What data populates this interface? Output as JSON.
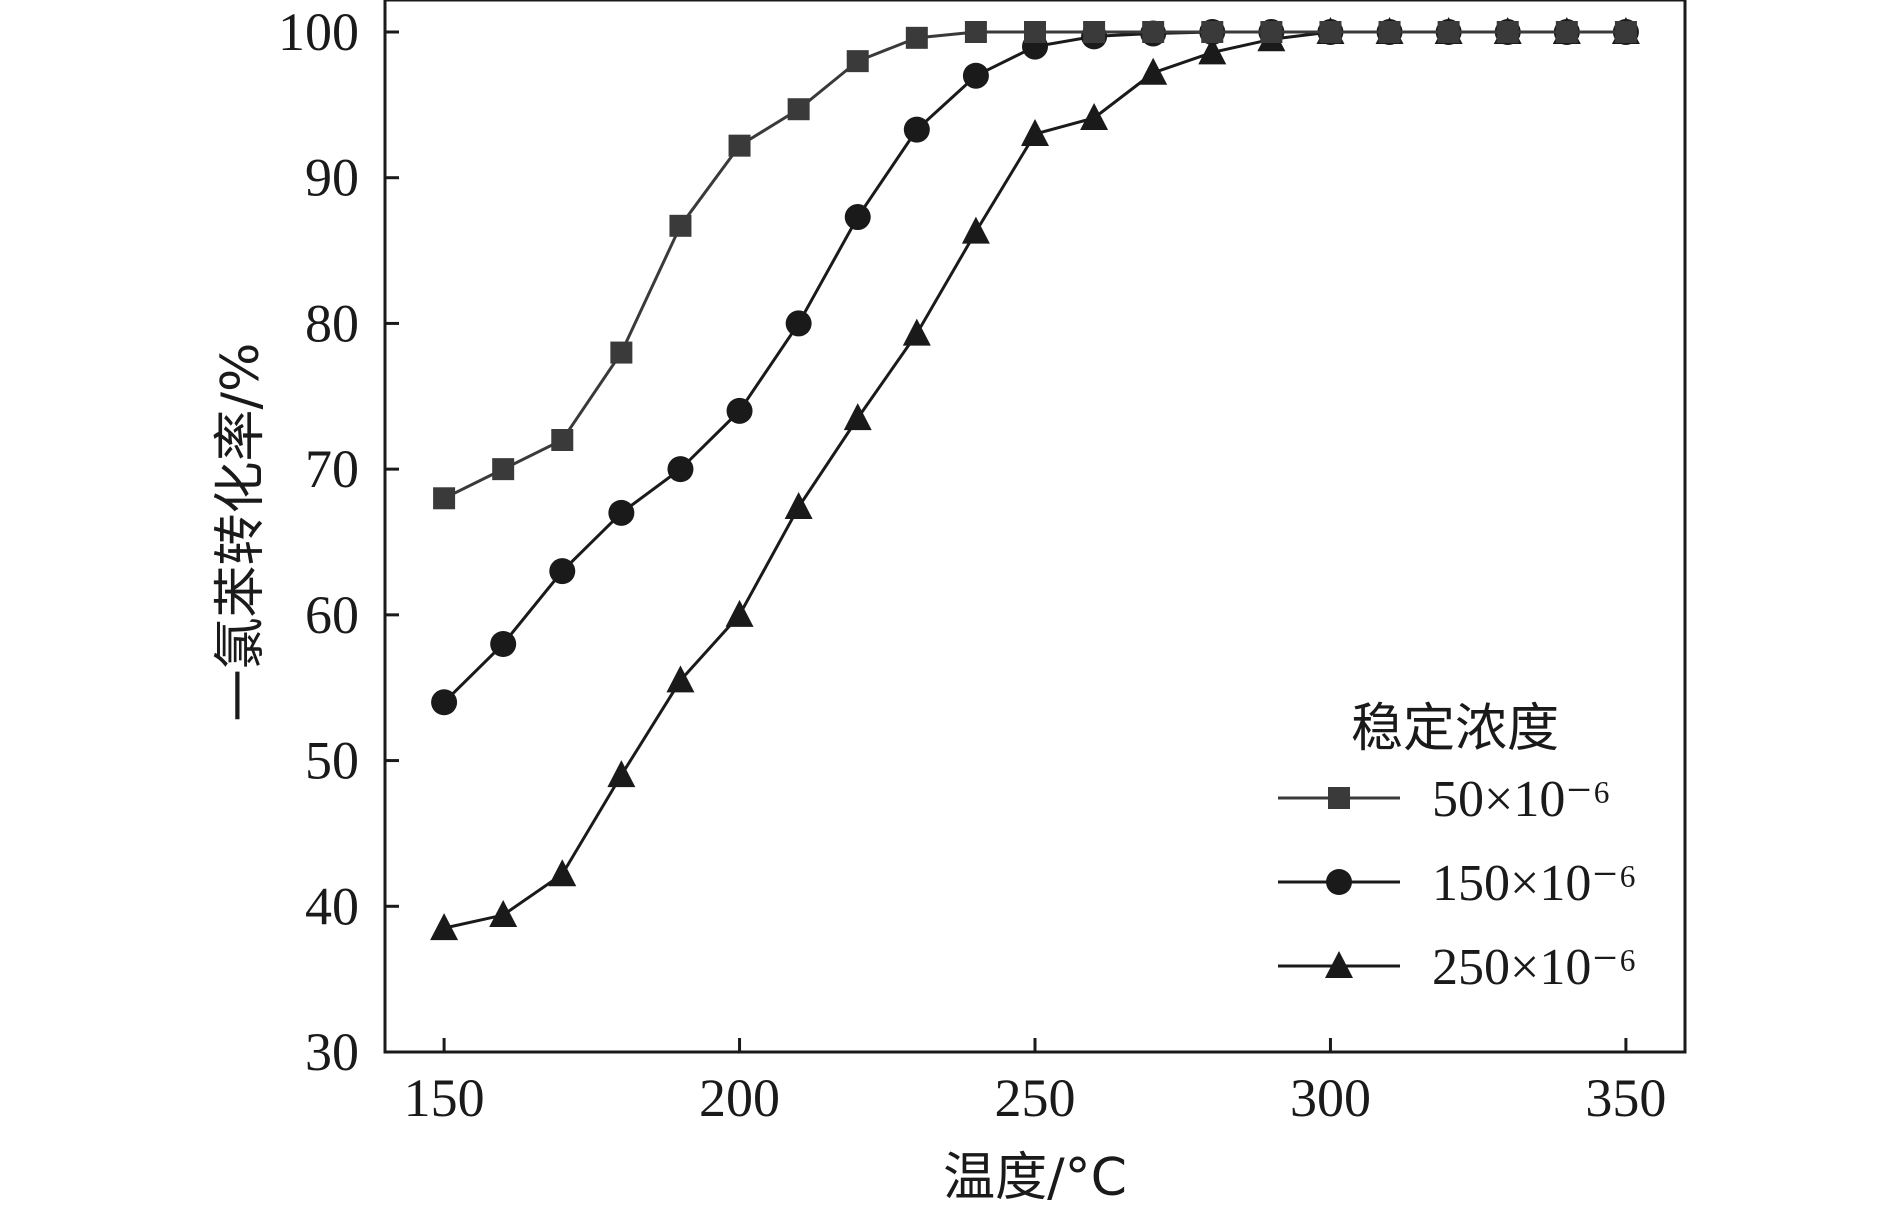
{
  "chart_data": {
    "type": "line",
    "title": "",
    "xlabel": "温度/°C",
    "ylabel": "一氯苯转化率/%",
    "xlim": [
      140,
      360
    ],
    "ylim": [
      30,
      100
    ],
    "xticks": [
      150,
      200,
      250,
      300,
      350
    ],
    "yticks": [
      30,
      40,
      50,
      60,
      70,
      80,
      90,
      100
    ],
    "grid": false,
    "legend": {
      "title": "稳定浓度",
      "position": "bottom-right"
    },
    "x": [
      150,
      160,
      170,
      180,
      190,
      200,
      210,
      220,
      230,
      240,
      250,
      260,
      270,
      280,
      290,
      300,
      310,
      320,
      330,
      340,
      350
    ],
    "series": [
      {
        "name": "50×10⁻⁶",
        "marker": "square",
        "color": "#3a3a3a",
        "values": [
          68,
          70,
          72,
          78,
          86.7,
          92.2,
          94.7,
          98,
          99.6,
          100,
          100,
          100,
          100,
          100,
          100,
          100,
          100,
          100,
          100,
          100,
          100
        ]
      },
      {
        "name": "150×10⁻⁶",
        "marker": "circle",
        "color": "#1a1a1a",
        "values": [
          54,
          58,
          63,
          67,
          70,
          74,
          80,
          87.3,
          93.3,
          97,
          99,
          99.7,
          99.9,
          100,
          100,
          100,
          100,
          100,
          100,
          100,
          100
        ]
      },
      {
        "name": "250×10⁻⁶",
        "marker": "triangle",
        "color": "#1a1a1a",
        "values": [
          38.5,
          39.4,
          42.2,
          49,
          55.5,
          60,
          67.4,
          73.5,
          79.3,
          86.3,
          93,
          94.1,
          97.2,
          98.6,
          99.5,
          100,
          100,
          100,
          100,
          100,
          100
        ]
      }
    ]
  }
}
